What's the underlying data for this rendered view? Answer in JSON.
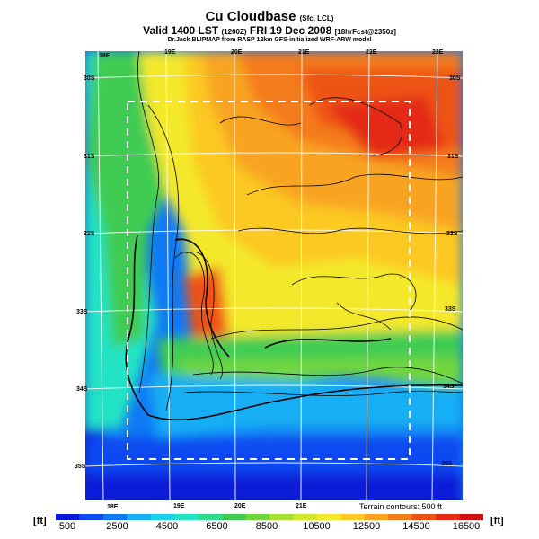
{
  "title": {
    "main": "Cu Cloudbase",
    "main_suffix": "(Sfc. LCL)",
    "valid": "Valid 1400 LST",
    "valid_code": "(1200Z)",
    "valid_date": "FRI 19 Dec 2008",
    "valid_forecast": "[18hrFcst@2350z]",
    "source": "Dr.Jack BLIPMAP from RASP 12km GFS-initialized WRF-ARW model"
  },
  "map": {
    "lon_labels_top": [
      "18E",
      "19E",
      "20E",
      "21E",
      "22E",
      "23E"
    ],
    "lon_labels_bottom": [
      "18E",
      "19E",
      "20E",
      "21E"
    ],
    "lat_labels_left": [
      "30S",
      "31S",
      "32S",
      "33S",
      "34S",
      "35S"
    ],
    "lat_labels_right": [
      "30S",
      "31S",
      "32S",
      "33S",
      "34S",
      "35S"
    ]
  },
  "legend": {
    "terrain_note": "Terrain contours: 500 ft",
    "unit_left": "[ft]",
    "unit_right": "[ft]",
    "tick_labels": [
      "500",
      "2500",
      "4500",
      "6500",
      "8500",
      "10500",
      "12500",
      "14500",
      "16500"
    ],
    "colors": [
      "#0a1ad8",
      "#1048f0",
      "#0f7af6",
      "#16aef4",
      "#19d2ea",
      "#22e4c4",
      "#2edc8c",
      "#40cc52",
      "#72d63e",
      "#a4e032",
      "#d2e82c",
      "#f4e82a",
      "#fcc824",
      "#f8a420",
      "#f47c1c",
      "#ee5218",
      "#e42c14",
      "#d01010"
    ]
  }
}
